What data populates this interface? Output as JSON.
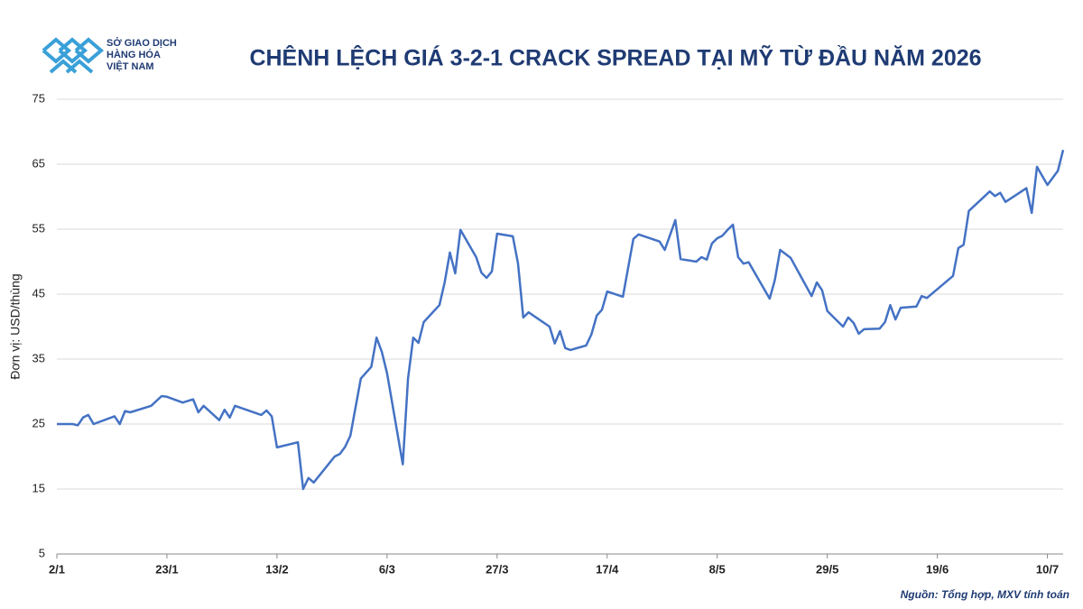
{
  "logo": {
    "lines": [
      "SỞ GIAO DỊCH",
      "HÀNG HÓA",
      "VIỆT NAM"
    ]
  },
  "chart_data": {
    "type": "line",
    "title": "CHÊNH LỆCH GIÁ 3-2-1 CRACK SPREAD TẠI MỸ TỪ ĐẦU NĂM 2026",
    "y_label": "Đơn vị: USD/thùng",
    "source": "Nguồn: Tổng hợp, MXV tính toán",
    "x": [
      2,
      5,
      6,
      7,
      8,
      9,
      13,
      14,
      15,
      16,
      20,
      22,
      23,
      26,
      28,
      29,
      30,
      33,
      34,
      35,
      36,
      41,
      42,
      43,
      44,
      48,
      49,
      50,
      51,
      55,
      56,
      57,
      58,
      60,
      62,
      63,
      64,
      65,
      68,
      69,
      70,
      71,
      72,
      75,
      76,
      77,
      78,
      79,
      82,
      83,
      84,
      85,
      86,
      89,
      90,
      91,
      92,
      96,
      97,
      98,
      99,
      100,
      103,
      104,
      105,
      106,
      107,
      110,
      112,
      113,
      117,
      118,
      120,
      121,
      124,
      125,
      126,
      127,
      128,
      129,
      130,
      131,
      132,
      133,
      134,
      138,
      139,
      140,
      142,
      146,
      147,
      148,
      149,
      152,
      153,
      154,
      155,
      156,
      159,
      160,
      161,
      162,
      163,
      166,
      167,
      168,
      173,
      174,
      175,
      176,
      180,
      181,
      182,
      183,
      187,
      188,
      189,
      191,
      193,
      194
    ],
    "series": [
      {
        "name": "3-2-1 Crack Spread",
        "color": "#4472c4",
        "values": [
          25.0,
          25.0,
          24.8,
          26.0,
          26.4,
          25.0,
          26.2,
          25.0,
          27.0,
          26.8,
          27.8,
          29.3,
          29.2,
          28.3,
          28.8,
          26.8,
          27.8,
          25.6,
          27.2,
          26.0,
          27.8,
          26.4,
          27.1,
          26.2,
          21.4,
          22.2,
          15.0,
          16.7,
          16.0,
          20.0,
          20.4,
          21.5,
          23.2,
          32.0,
          33.8,
          38.3,
          36.1,
          32.8,
          18.8,
          32.0,
          38.3,
          37.5,
          40.7,
          43.3,
          46.8,
          51.4,
          48.2,
          54.9,
          50.7,
          48.3,
          47.5,
          48.5,
          54.3,
          53.9,
          49.7,
          41.4,
          42.2,
          40.0,
          37.4,
          39.3,
          36.7,
          36.4,
          37.1,
          38.8,
          41.7,
          42.6,
          45.4,
          44.6,
          53.5,
          54.2,
          53.1,
          51.8,
          56.4,
          50.4,
          50.0,
          50.7,
          50.3,
          52.8,
          53.6,
          54.0,
          54.9,
          55.7,
          50.7,
          49.7,
          49.9,
          44.3,
          47.2,
          51.8,
          50.6,
          44.7,
          46.8,
          45.6,
          42.4,
          40.0,
          41.4,
          40.6,
          38.9,
          39.6,
          39.7,
          40.7,
          43.3,
          41.1,
          42.9,
          43.1,
          44.7,
          44.4,
          47.8,
          52.1,
          52.6,
          57.8,
          60.8,
          60.1,
          60.6,
          59.2,
          61.3,
          57.5,
          64.6,
          61.8,
          64.0,
          67.2
        ]
      }
    ],
    "xlim": [
      2,
      194
    ],
    "xticks": [
      {
        "value": 2,
        "label": "2/1"
      },
      {
        "value": 23,
        "label": "23/1"
      },
      {
        "value": 44,
        "label": "13/2"
      },
      {
        "value": 65,
        "label": "6/3"
      },
      {
        "value": 86,
        "label": "27/3"
      },
      {
        "value": 107,
        "label": "17/4"
      },
      {
        "value": 128,
        "label": "8/5"
      },
      {
        "value": 149,
        "label": "29/5"
      },
      {
        "value": 170,
        "label": "19/6"
      },
      {
        "value": 191,
        "label": "10/7"
      }
    ],
    "ylim": [
      5,
      75
    ],
    "yticks": [
      5,
      15,
      25,
      35,
      45,
      55,
      65,
      75
    ],
    "grid": true
  }
}
